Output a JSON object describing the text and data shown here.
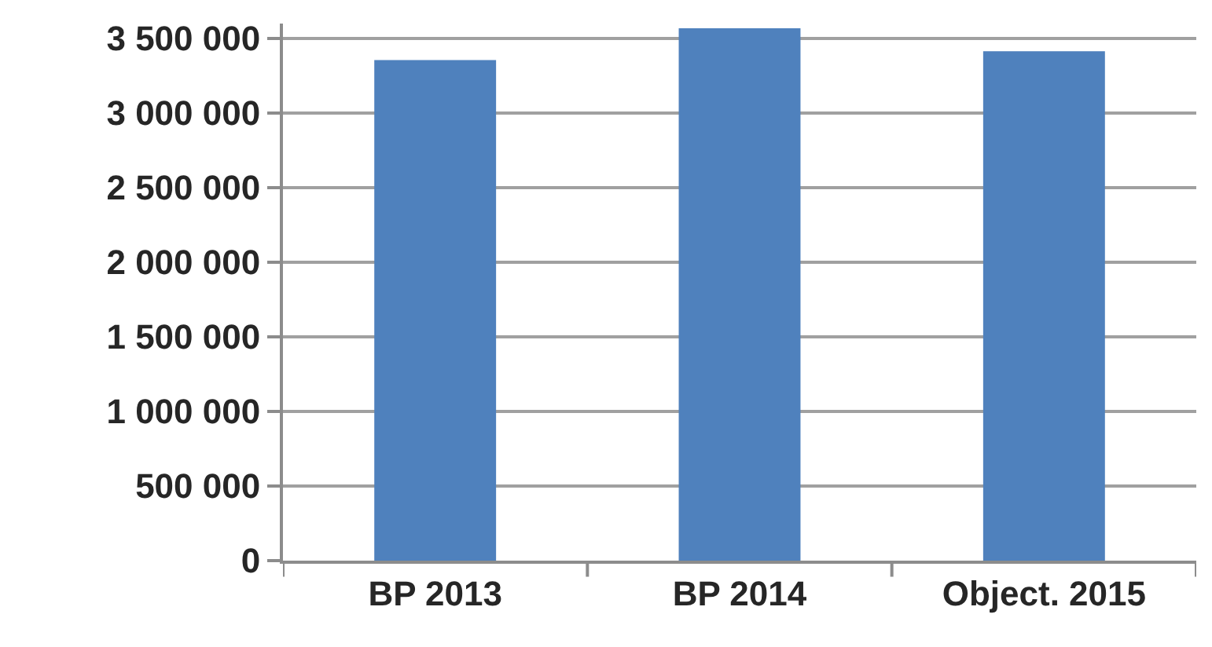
{
  "chart_data": {
    "type": "bar",
    "categories": [
      "BP 2013",
      "BP 2014",
      "Object. 2015"
    ],
    "values": [
      3355000,
      3568000,
      3414000
    ],
    "color": "#4f81bd",
    "ylim": [
      0,
      3600000
    ],
    "yticks": [
      {
        "value": 0,
        "label": "0"
      },
      {
        "value": 500000,
        "label": "500 000"
      },
      {
        "value": 1000000,
        "label": "1 000 000"
      },
      {
        "value": 1500000,
        "label": "1 500 000"
      },
      {
        "value": 2000000,
        "label": "2 000 000"
      },
      {
        "value": 2500000,
        "label": "2 500 000"
      },
      {
        "value": 3000000,
        "label": "3 000 000"
      },
      {
        "value": 3500000,
        "label": "3 500 000"
      }
    ],
    "grid": "y"
  }
}
